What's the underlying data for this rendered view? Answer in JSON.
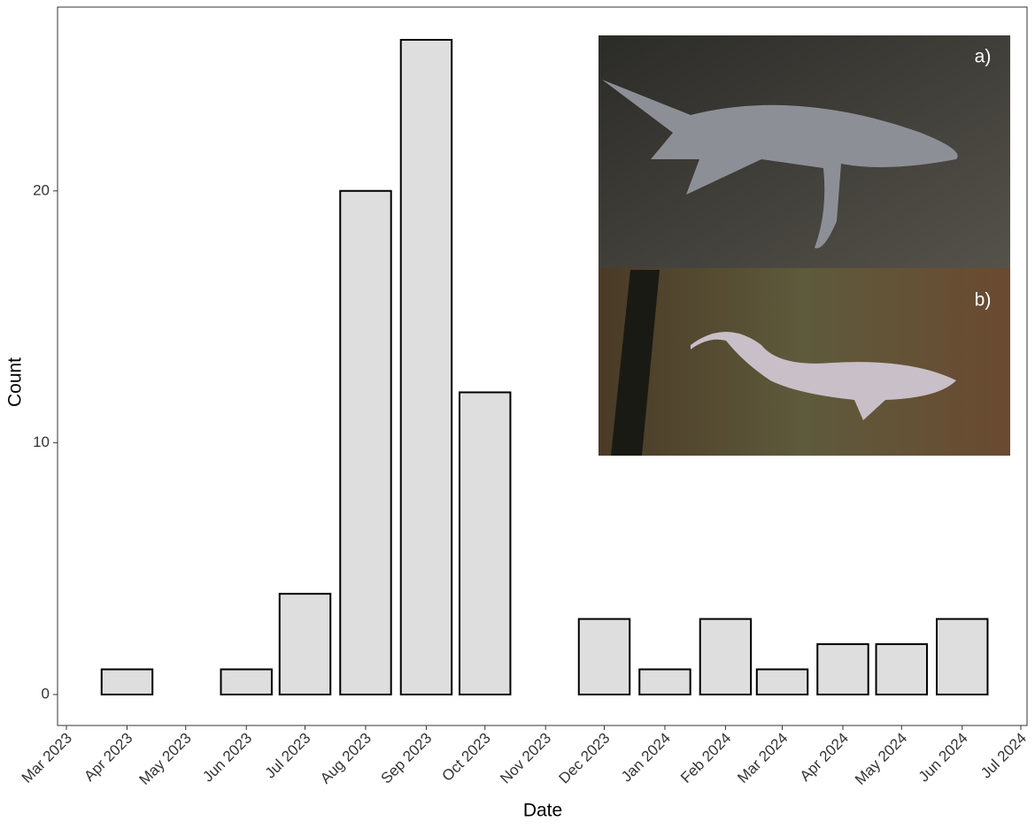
{
  "chart_data": {
    "type": "bar",
    "x_label": "Date",
    "y_label": "Count",
    "categories": [
      "Apr 2023",
      "Jun 2023",
      "Jul 2023",
      "Aug 2023",
      "Sep 2023",
      "Oct 2023",
      "Dec 2023",
      "Jan 2024",
      "Feb 2024",
      "Mar 2024",
      "Apr 2024",
      "May 2024",
      "Jun 2024"
    ],
    "values": [
      1,
      1,
      4,
      20,
      26,
      12,
      3,
      1,
      3,
      1,
      2,
      2,
      3
    ],
    "color": "#dedede",
    "xlim": [
      "Mar 2023",
      "Jul 2024"
    ],
    "xticks": [
      "Mar 2023",
      "Apr 2023",
      "May 2023",
      "Jun 2023",
      "Jul 2023",
      "Aug 2023",
      "Sep 2023",
      "Oct 2023",
      "Nov 2023",
      "Dec 2023",
      "Jan 2024",
      "Feb 2024",
      "Mar 2024",
      "Apr 2024",
      "May 2024",
      "Jun 2024",
      "Jul 2024"
    ],
    "ylim": [
      -1.23,
      27.3
    ],
    "yticks": [
      0,
      10,
      20
    ],
    "grid": false,
    "inset_labels": [
      "a)",
      "b)"
    ]
  }
}
